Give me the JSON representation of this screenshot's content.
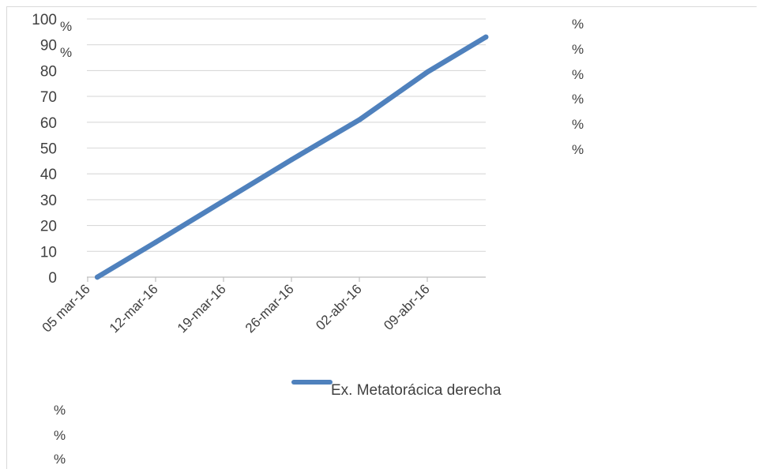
{
  "chart_data": {
    "type": "line",
    "title": "",
    "xlabel": "",
    "ylabel": "",
    "x_tick_labels": [
      "05 mar-16",
      "12-mar-16",
      "19-mar-16",
      "26-mar-16",
      "02-abr-16",
      "09-abr-16"
    ],
    "y_tick_labels": [
      "0",
      "10",
      "20",
      "30",
      "40",
      "50",
      "60",
      "70",
      "80",
      "90",
      "100"
    ],
    "ylim": [
      0,
      100
    ],
    "xlim": [
      "2016-03-05",
      "2016-04-15"
    ],
    "grid": true,
    "legend_position": "bottom",
    "series": [
      {
        "name": "Ex. Metatorácica derecha",
        "color": "#4f81bd",
        "x": [
          "2016-03-06",
          "2016-03-12",
          "2016-03-19",
          "2016-03-26",
          "2016-04-02",
          "2016-04-09",
          "2016-04-15"
        ],
        "y": [
          0,
          13.5,
          29.5,
          45.5,
          61,
          79.5,
          93
        ]
      }
    ]
  },
  "percent_marks": {
    "y_tick_suffix_100": "%",
    "y_tick_suffix_90": "%",
    "right_column": [
      "%",
      "%",
      "%",
      "%",
      "%",
      "%"
    ],
    "bottom_left": [
      "%",
      "%",
      "%"
    ]
  }
}
